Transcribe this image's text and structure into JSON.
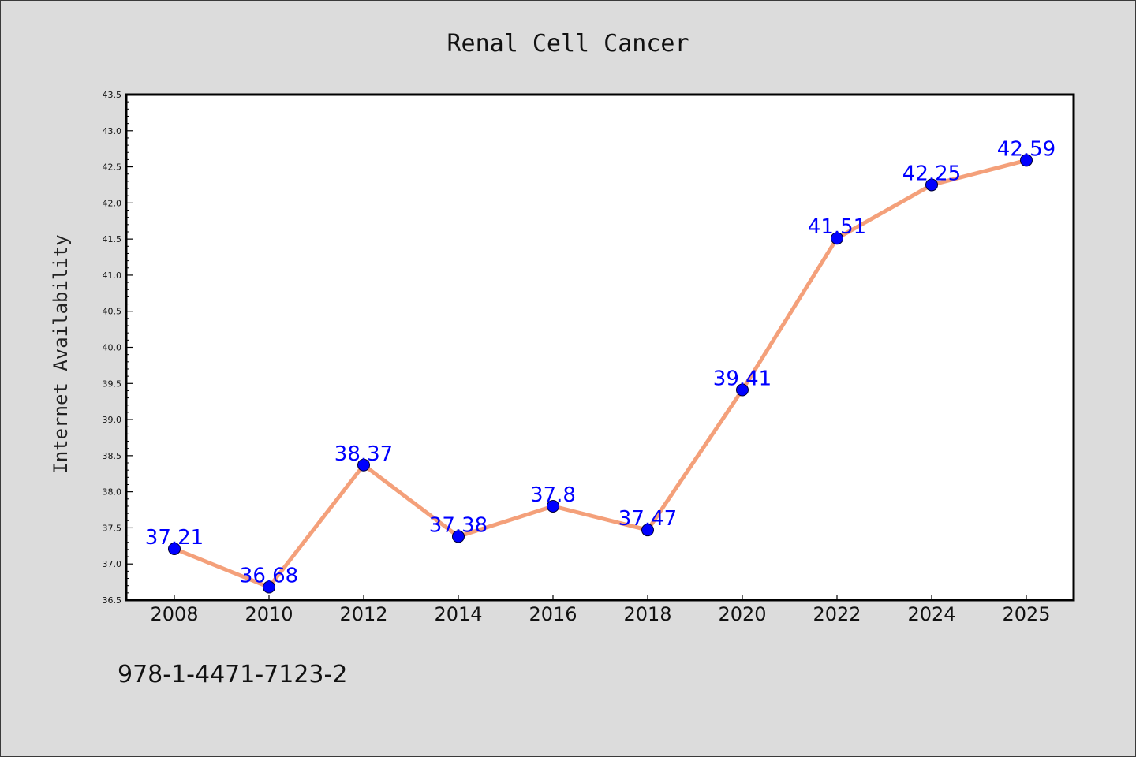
{
  "chart_data": {
    "type": "line",
    "title": "Renal Cell Cancer",
    "xlabel": "",
    "ylabel": "Internet Availability",
    "categories": [
      "2008",
      "2010",
      "2012",
      "2014",
      "2016",
      "2018",
      "2020",
      "2022",
      "2024",
      "2025"
    ],
    "series": [
      {
        "values": [
          37.21,
          36.68,
          38.37,
          37.38,
          37.8,
          37.47,
          39.41,
          41.51,
          42.25,
          42.59
        ],
        "data_labels": [
          "37.21",
          "36.68",
          "38.37",
          "37.38",
          "37.8",
          "37.47",
          "39.41",
          "41.51",
          "42.25",
          "42.59"
        ]
      }
    ],
    "ylim": [
      36.5,
      43.5
    ],
    "yticks": [
      "36.5",
      "37.0",
      "37.5",
      "38.0",
      "38.5",
      "39.0",
      "39.5",
      "40.0",
      "40.5",
      "41.0",
      "41.5",
      "42.0",
      "42.5",
      "43.0",
      "43.5"
    ],
    "grid": false,
    "legend": "none",
    "colors": {
      "line": "#f4a07a",
      "marker": "#0000ff",
      "data_label": "#0000ff",
      "background": "#dcdcdc",
      "plot_background": "#ffffff"
    }
  },
  "annotation": "978-1-4471-7123-2"
}
